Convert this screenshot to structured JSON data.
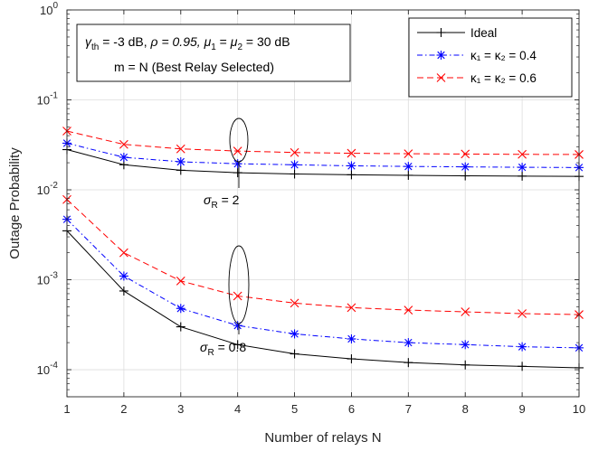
{
  "chart_data": {
    "type": "line",
    "xlabel": "Number of relays N",
    "ylabel": "Outage Probability",
    "x": [
      1,
      2,
      3,
      4,
      5,
      6,
      7,
      8,
      9,
      10
    ],
    "xlim": [
      1,
      10
    ],
    "ylim": [
      5e-05,
      1
    ],
    "y_scale": "log",
    "x_tick_labels": [
      "1",
      "2",
      "3",
      "4",
      "5",
      "6",
      "7",
      "8",
      "9",
      "10"
    ],
    "y_ticks": [
      {
        "value": 0.0001,
        "base": "10",
        "exp": "-4"
      },
      {
        "value": 0.001,
        "base": "10",
        "exp": "-3"
      },
      {
        "value": 0.01,
        "base": "10",
        "exp": "-2"
      },
      {
        "value": 0.1,
        "base": "10",
        "exp": "-1"
      },
      {
        "value": 1,
        "base": "10",
        "exp": "0"
      }
    ],
    "grid": true,
    "legend_position": "top-right",
    "legend": [
      {
        "label": "Ideal",
        "color": "#000000",
        "marker": "plus",
        "dash": "solid"
      },
      {
        "label": "κ₁ = κ₂ = 0.4",
        "color": "#0000ff",
        "marker": "star",
        "dash": "dashdot"
      },
      {
        "label": "κ₁ = κ₂ = 0.6",
        "color": "#ff0000",
        "marker": "x",
        "dash": "dashed"
      }
    ],
    "series": [
      {
        "group": "σR = 2",
        "style": 0,
        "values": [
          0.028,
          0.019,
          0.0165,
          0.0155,
          0.015,
          0.0147,
          0.0145,
          0.0143,
          0.0142,
          0.0141
        ]
      },
      {
        "group": "σR = 2",
        "style": 1,
        "values": [
          0.033,
          0.023,
          0.0205,
          0.0195,
          0.019,
          0.0185,
          0.0182,
          0.018,
          0.0178,
          0.0177
        ]
      },
      {
        "group": "σR = 2",
        "style": 2,
        "values": [
          0.045,
          0.032,
          0.0285,
          0.027,
          0.026,
          0.0255,
          0.0252,
          0.025,
          0.0248,
          0.0247
        ]
      },
      {
        "group": "σR = 0.8",
        "style": 0,
        "values": [
          0.0035,
          0.00075,
          0.0003,
          0.00019,
          0.00015,
          0.000132,
          0.00012,
          0.000113,
          0.000109,
          0.000105
        ]
      },
      {
        "group": "σR = 0.8",
        "style": 1,
        "values": [
          0.0047,
          0.0011,
          0.00048,
          0.00031,
          0.00025,
          0.00022,
          0.0002,
          0.00019,
          0.00018,
          0.000175
        ]
      },
      {
        "group": "σR = 0.8",
        "style": 2,
        "values": [
          0.0078,
          0.002,
          0.00097,
          0.00066,
          0.00055,
          0.00049,
          0.00046,
          0.00044,
          0.00042,
          0.00041
        ]
      }
    ],
    "annotations": {
      "params_line1": {
        "gamma": "γ",
        "gamma_sub": "th",
        "gamma_value": " = -3 dB, ",
        "rho": "ρ = 0.95, ",
        "mu1": "μ",
        "mu1_sub": "1",
        "eq": " = ",
        "mu2": "μ",
        "mu2_sub": "2",
        "mu_value": " = 30 dB"
      },
      "params_line2": "m = N (Best Relay Selected)",
      "sigma_high": {
        "sym": "σ",
        "sub": "R",
        "value": " = 2"
      },
      "sigma_low": {
        "sym": "σ",
        "sub": "R",
        "value": " = 0.8"
      }
    }
  }
}
